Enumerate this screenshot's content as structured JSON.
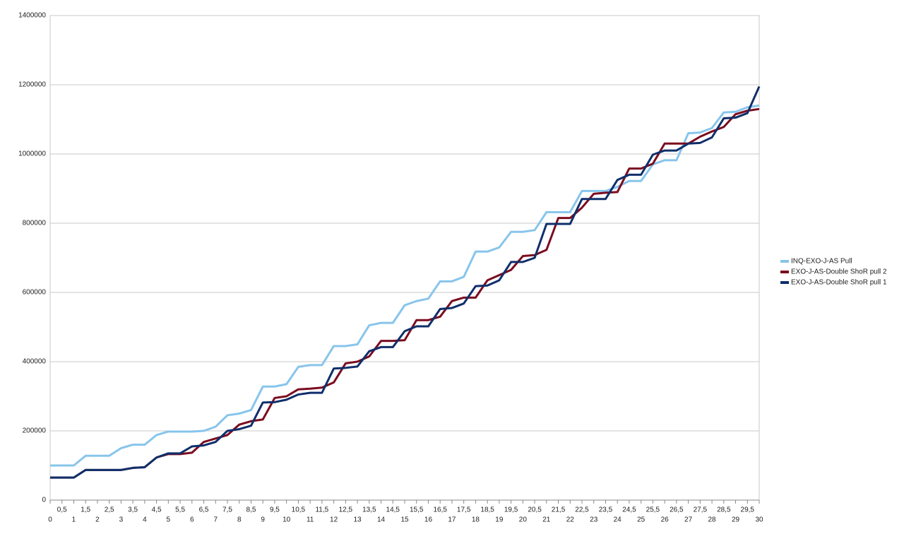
{
  "chart_data": {
    "type": "line",
    "x": [
      0,
      0.5,
      1,
      1.5,
      2,
      2.5,
      3,
      3.5,
      4,
      4.5,
      5,
      5.5,
      6,
      6.5,
      7,
      7.5,
      8,
      8.5,
      9,
      9.5,
      10,
      10.5,
      11,
      11.5,
      12,
      12.5,
      13,
      13.5,
      14,
      14.5,
      15,
      15.5,
      16,
      16.5,
      17,
      17.5,
      18,
      18.5,
      19,
      19.5,
      20,
      20.5,
      21,
      21.5,
      22,
      22.5,
      23,
      23.5,
      24,
      24.5,
      25,
      25.5,
      26,
      26.5,
      27,
      27.5,
      28,
      28.5,
      29,
      29.5,
      30
    ],
    "series": [
      {
        "name": "INQ-EXO-J-AS Pull",
        "color": "#87c5ec",
        "values": [
          100000,
          100000,
          100000,
          128000,
          128000,
          128000,
          150000,
          160000,
          160000,
          188000,
          198000,
          198000,
          198000,
          200000,
          212000,
          245000,
          250000,
          260000,
          328000,
          328000,
          335000,
          385000,
          390000,
          390000,
          445000,
          445000,
          450000,
          505000,
          512000,
          512000,
          563000,
          575000,
          582000,
          632000,
          632000,
          645000,
          718000,
          718000,
          730000,
          775000,
          775000,
          780000,
          832000,
          832000,
          832000,
          893000,
          893000,
          893000,
          905000,
          922000,
          922000,
          970000,
          982000,
          982000,
          1060000,
          1062000,
          1075000,
          1120000,
          1122000,
          1135000,
          1140000
        ]
      },
      {
        "name": "EXO-J-AS-Double ShoR pull 2",
        "color": "#7b0c1f",
        "values": [
          65000,
          65000,
          65000,
          87000,
          87000,
          87000,
          87000,
          93000,
          95000,
          123000,
          133000,
          133000,
          137000,
          168000,
          178000,
          188000,
          218000,
          228000,
          233000,
          295000,
          300000,
          320000,
          322000,
          325000,
          340000,
          395000,
          400000,
          415000,
          460000,
          460000,
          462000,
          520000,
          520000,
          530000,
          575000,
          585000,
          585000,
          635000,
          650000,
          665000,
          705000,
          708000,
          723000,
          815000,
          815000,
          845000,
          885000,
          888000,
          890000,
          958000,
          958000,
          972000,
          1030000,
          1030000,
          1030000,
          1050000,
          1065000,
          1078000,
          1115000,
          1125000,
          1130000
        ]
      },
      {
        "name": "EXO-J-AS-Double ShoR pull 1",
        "color": "#0f2f6b",
        "values": [
          65000,
          65000,
          65000,
          87000,
          87000,
          87000,
          87000,
          93000,
          95000,
          123000,
          135000,
          135000,
          155000,
          158000,
          168000,
          200000,
          205000,
          215000,
          282000,
          283000,
          290000,
          305000,
          310000,
          310000,
          380000,
          382000,
          386000,
          430000,
          442000,
          442000,
          488000,
          502000,
          502000,
          552000,
          555000,
          568000,
          618000,
          620000,
          635000,
          688000,
          688000,
          700000,
          798000,
          798000,
          798000,
          870000,
          870000,
          870000,
          925000,
          940000,
          940000,
          998000,
          1010000,
          1010000,
          1030000,
          1032000,
          1048000,
          1103000,
          1105000,
          1118000,
          1195000
        ]
      }
    ],
    "xlim": [
      0,
      30
    ],
    "xticks": [
      0,
      {
        "value": 0.5,
        "label": "0,5"
      },
      1,
      {
        "value": 1.5,
        "label": "1,5"
      },
      2,
      {
        "value": 2.5,
        "label": "2,5"
      },
      3,
      {
        "value": 3.5,
        "label": "3,5"
      },
      4,
      {
        "value": 4.5,
        "label": "4,5"
      },
      5,
      {
        "value": 5.5,
        "label": "5,5"
      },
      6,
      {
        "value": 6.5,
        "label": "6,5"
      },
      7,
      {
        "value": 7.5,
        "label": "7,5"
      },
      8,
      {
        "value": 8.5,
        "label": "8,5"
      },
      9,
      {
        "value": 9.5,
        "label": "9,5"
      },
      10,
      {
        "value": 10.5,
        "label": "10,5"
      },
      11,
      {
        "value": 11.5,
        "label": "11,5"
      },
      12,
      {
        "value": 12.5,
        "label": "12,5"
      },
      13,
      {
        "value": 13.5,
        "label": "13,5"
      },
      14,
      {
        "value": 14.5,
        "label": "14,5"
      },
      15,
      {
        "value": 15.5,
        "label": "15,5"
      },
      16,
      {
        "value": 16.5,
        "label": "16,5"
      },
      17,
      {
        "value": 17.5,
        "label": "17,5"
      },
      18,
      {
        "value": 18.5,
        "label": "18,5"
      },
      19,
      {
        "value": 19.5,
        "label": "19,5"
      },
      20,
      {
        "value": 20.5,
        "label": "20,5"
      },
      21,
      {
        "value": 21.5,
        "label": "21,5"
      },
      22,
      {
        "value": 22.5,
        "label": "22,5"
      },
      23,
      {
        "value": 23.5,
        "label": "23,5"
      },
      24,
      {
        "value": 24.5,
        "label": "24,5"
      },
      25,
      {
        "value": 25.5,
        "label": "25,5"
      },
      26,
      {
        "value": 26.5,
        "label": "26,5"
      },
      27,
      {
        "value": 27.5,
        "label": "27,5"
      },
      28,
      {
        "value": 28.5,
        "label": "28,5"
      },
      29,
      {
        "value": 29.5,
        "label": "29,5"
      },
      30
    ],
    "ylim": [
      0,
      1400000
    ],
    "yticks": [
      0,
      200000,
      400000,
      600000,
      800000,
      1000000,
      1200000,
      1400000
    ],
    "grid": true,
    "legend": "right"
  }
}
